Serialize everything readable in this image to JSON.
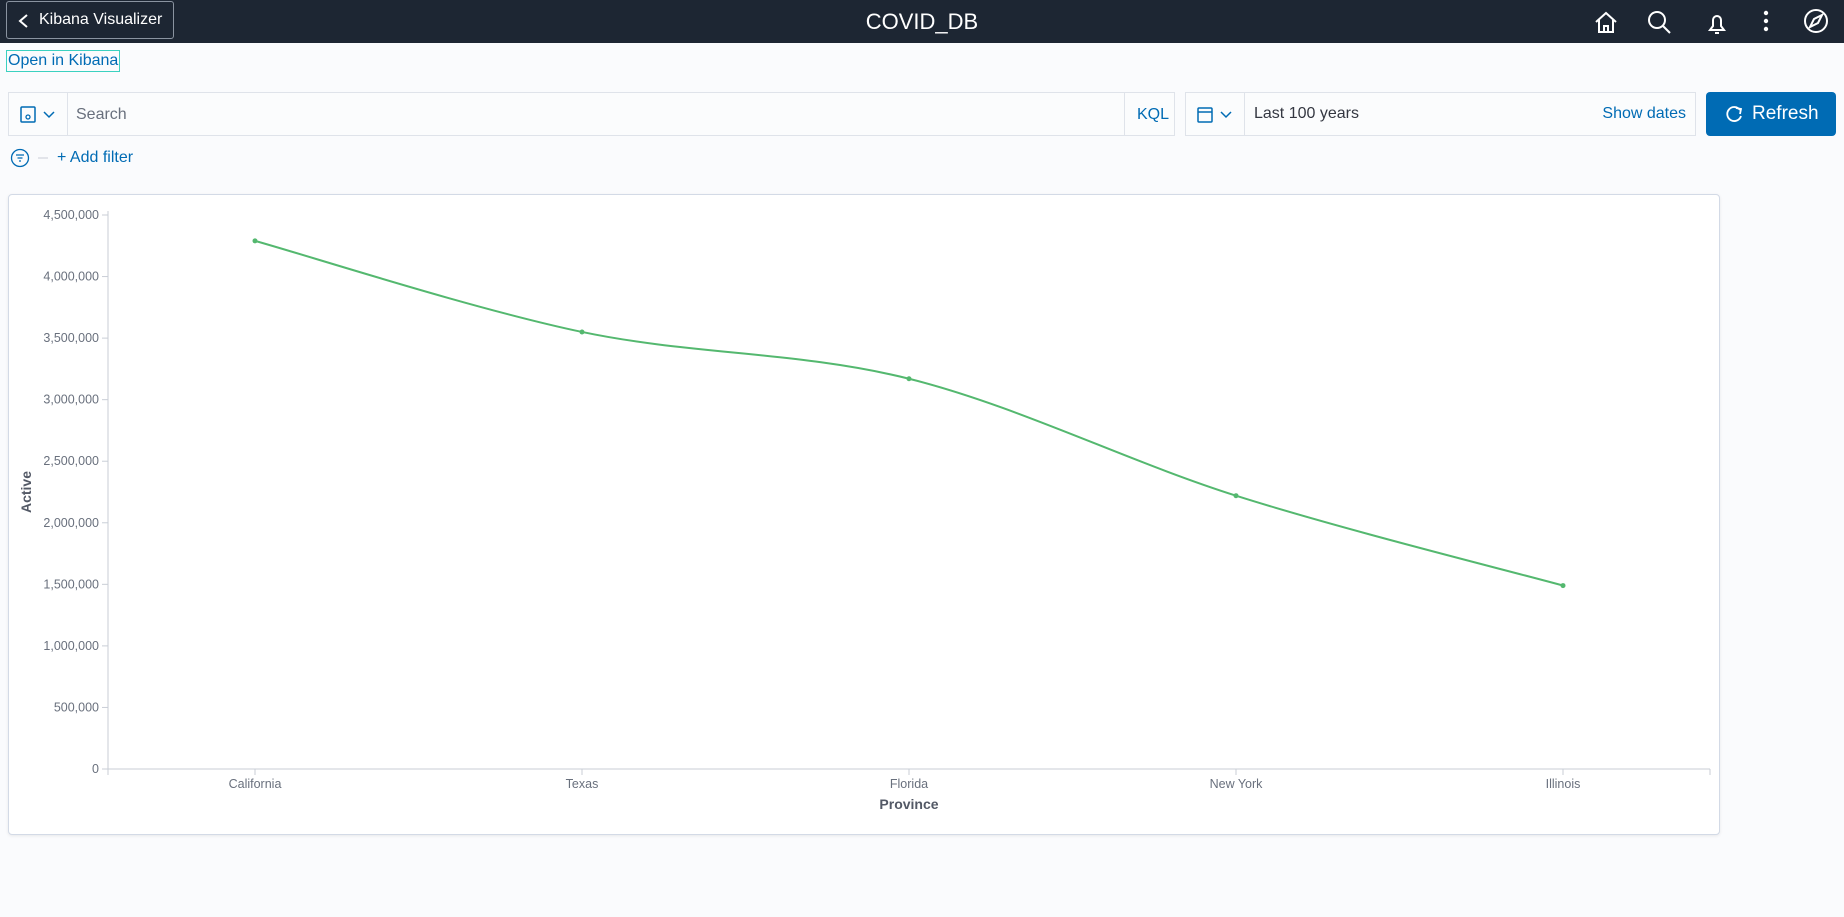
{
  "header": {
    "back_button": "Kibana Visualizer",
    "title": "COVID_DB"
  },
  "open_link": "Open in Kibana",
  "query_bar": {
    "placeholder": "Search",
    "language": "KQL",
    "time_range": "Last 100 years",
    "show_dates": "Show dates",
    "refresh": "Refresh"
  },
  "filter": {
    "add": "+ Add filter"
  },
  "chart_data": {
    "type": "line",
    "x_label": "Province",
    "y_label": "Active",
    "categories": [
      "California",
      "Texas",
      "Florida",
      "New York",
      "Illinois"
    ],
    "series": [
      {
        "name": "Active",
        "color": "#54b86f",
        "values": [
          4290000,
          3550000,
          3170000,
          2220000,
          1490000
        ]
      }
    ],
    "ylim": [
      0,
      4500000
    ],
    "yticks": [
      0,
      {
        "value": 500000,
        "label": "500,000"
      },
      {
        "value": 1000000,
        "label": "1,000,000"
      },
      {
        "value": 1500000,
        "label": "1,500,000"
      },
      {
        "value": 2000000,
        "label": "2,000,000"
      },
      {
        "value": 2500000,
        "label": "2,500,000"
      },
      {
        "value": 3000000,
        "label": "3,000,000"
      },
      {
        "value": 3500000,
        "label": "3,500,000"
      },
      {
        "value": 4000000,
        "label": "4,000,000"
      },
      {
        "value": 4500000,
        "label": "4,500,000"
      }
    ]
  }
}
